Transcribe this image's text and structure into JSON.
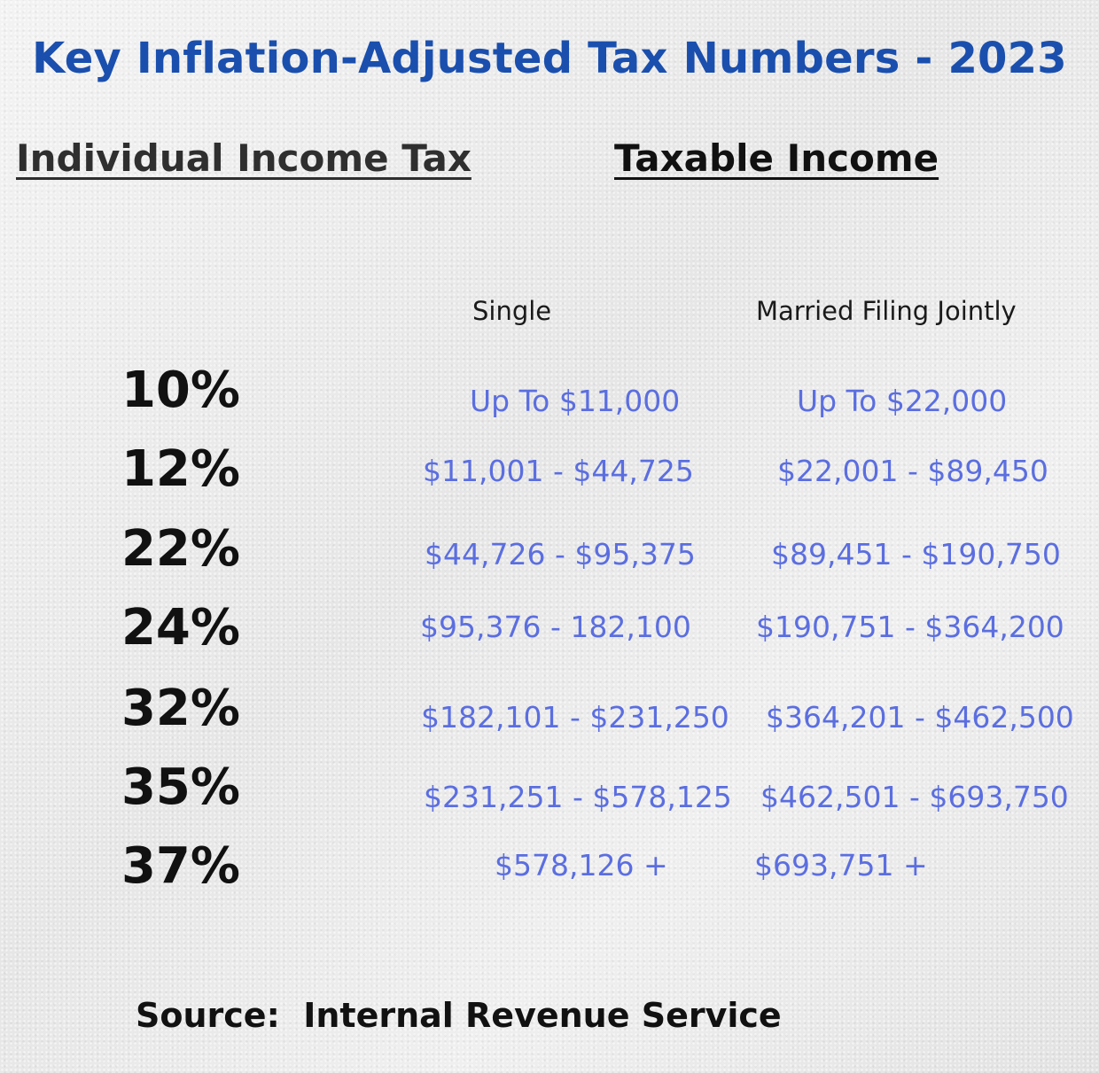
{
  "title": "Key Inflation-Adjusted Tax Numbers - 2023",
  "headings": {
    "left": "Individual Income Tax",
    "right": "Taxable Income"
  },
  "columns": {
    "single": "Single",
    "married": "Married Filing Jointly"
  },
  "brackets": [
    {
      "rate": "10%",
      "single": "Up To $11,000",
      "married": "Up To $22,000"
    },
    {
      "rate": "12%",
      "single": "$11,001 - $44,725",
      "married": "$22,001 - $89,450"
    },
    {
      "rate": "22%",
      "single": "$44,726 - $95,375",
      "married": "$89,451 - $190,750"
    },
    {
      "rate": "24%",
      "single": "$95,376 - 182,100",
      "married": "$190,751 - $364,200"
    },
    {
      "rate": "32%",
      "single": "$182,101 - $231,250",
      "married": "$364,201 - $462,500"
    },
    {
      "rate": "35%",
      "single": "$231,251 - $578,125",
      "married": "$462,501 - $693,750"
    },
    {
      "rate": "37%",
      "single": "$578,126 +",
      "married": "$693,751 +"
    }
  ],
  "source": "Source:  Internal Revenue Service",
  "colors": {
    "title": "#1a4fae",
    "ranges": "#5b6ee0",
    "text": "#111111"
  }
}
